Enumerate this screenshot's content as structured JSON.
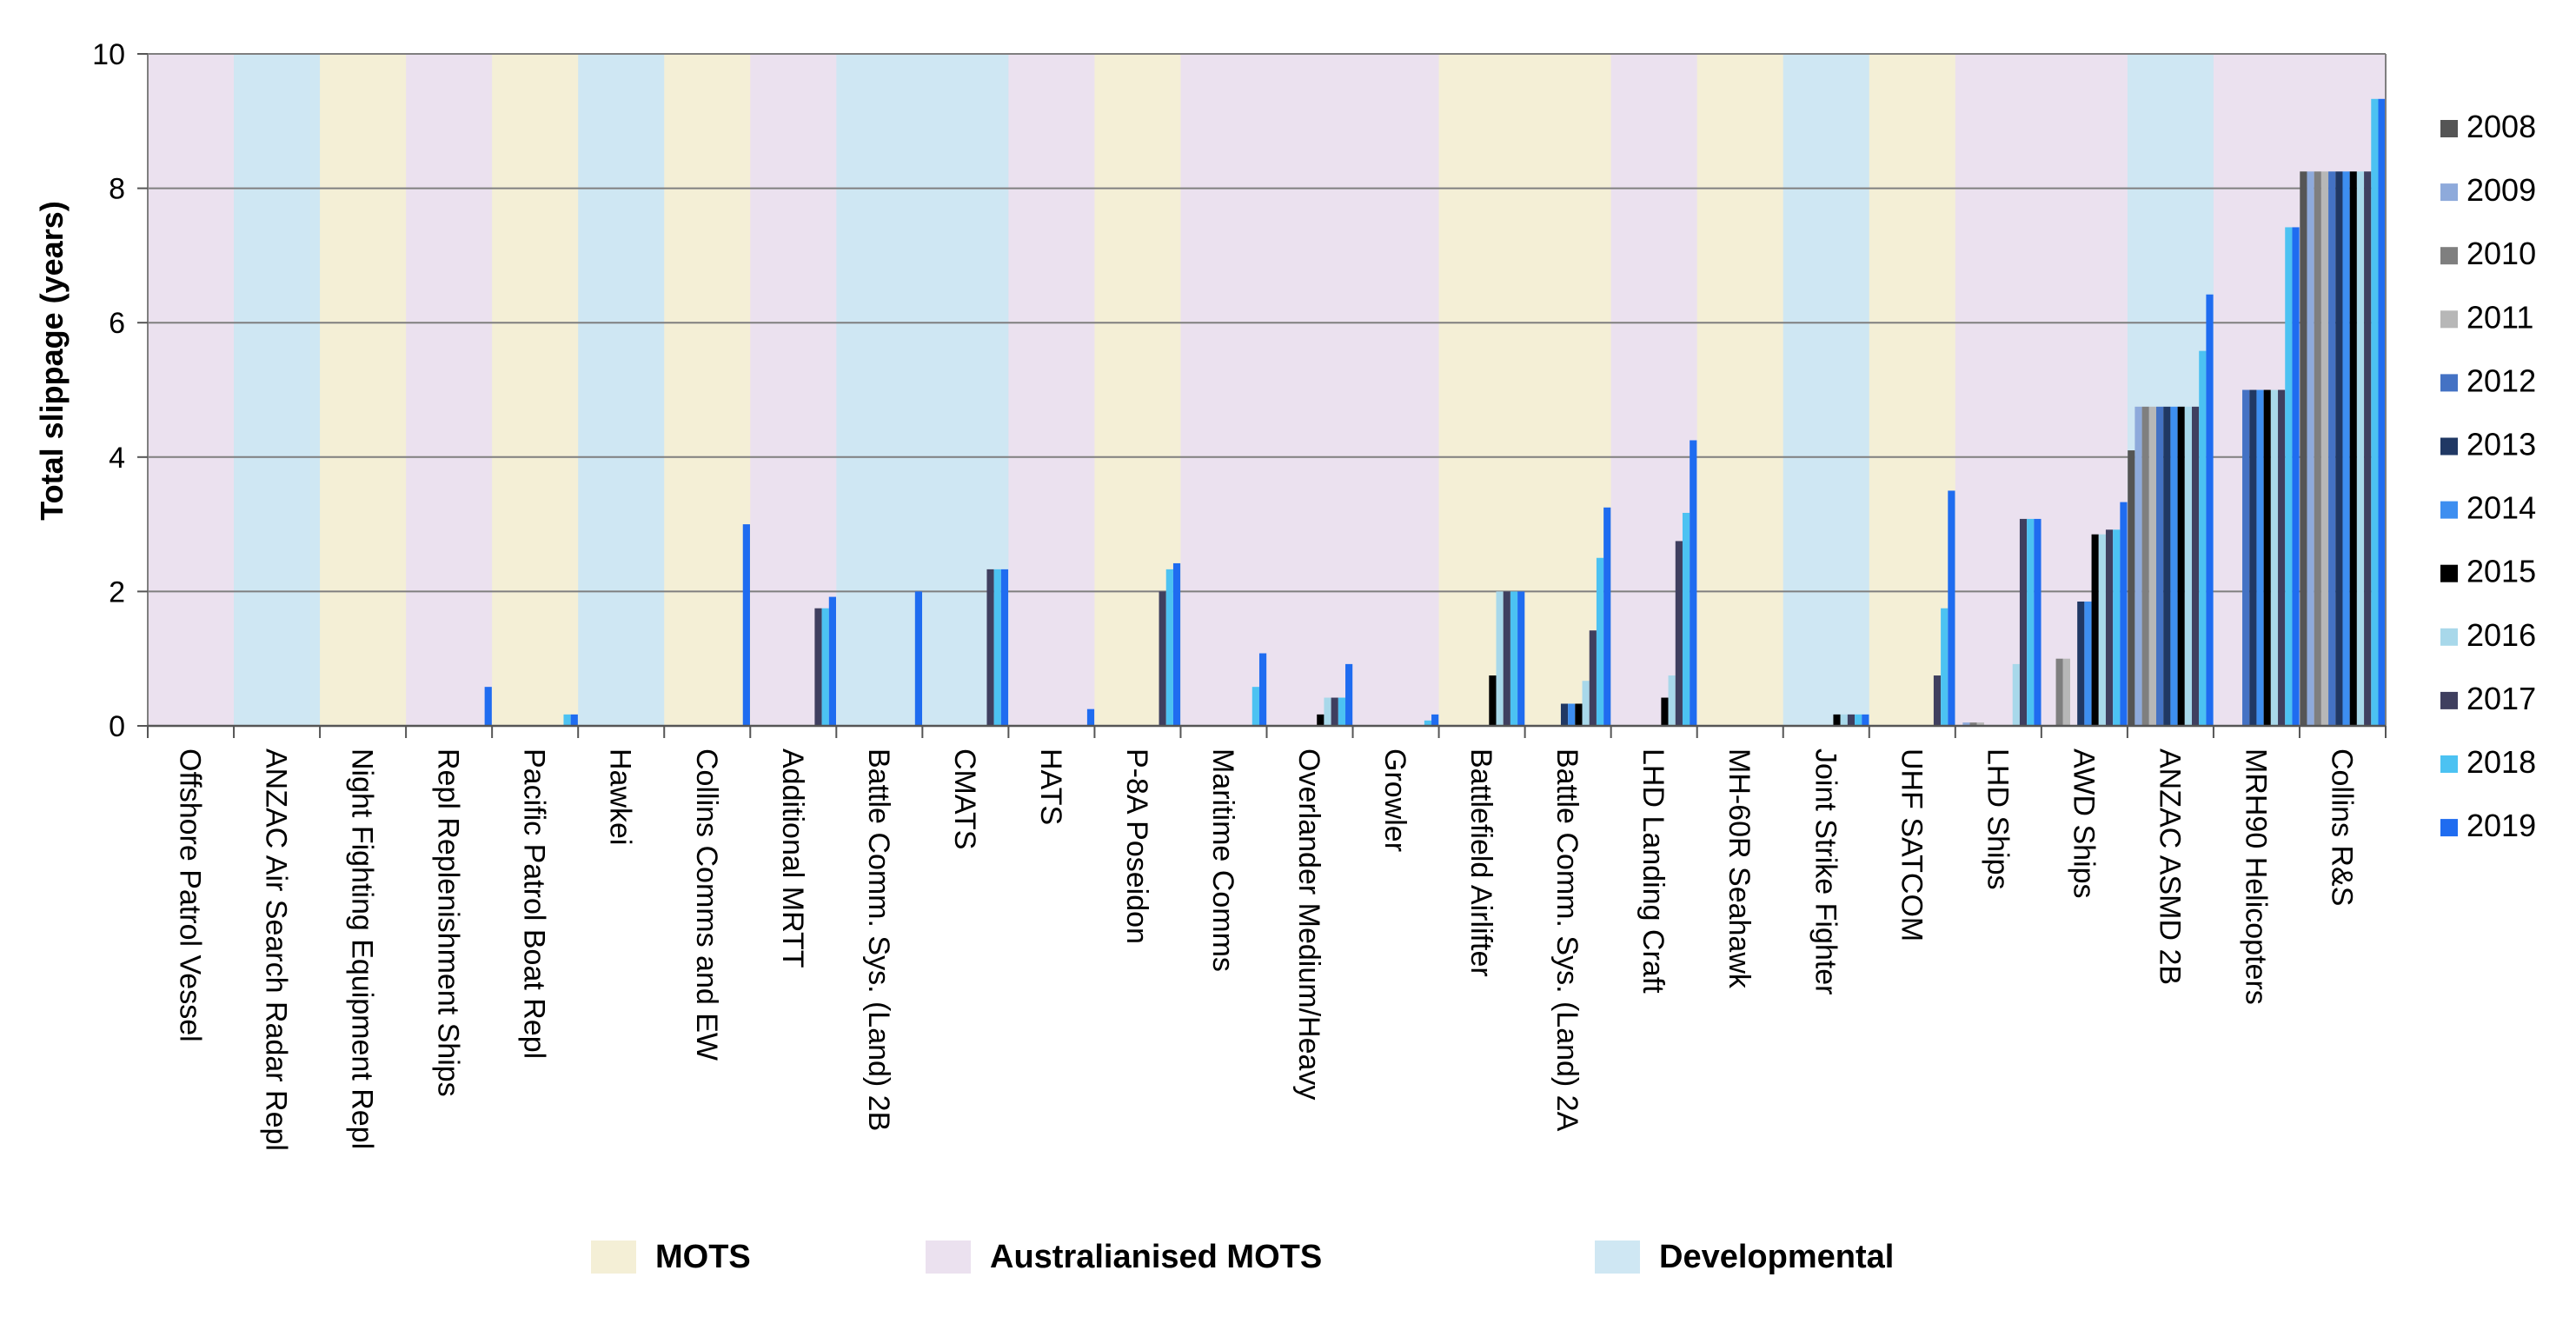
{
  "chart_data": {
    "type": "bar",
    "ylabel": "Total slippage (years)",
    "ylim": [
      0,
      10
    ],
    "yticks": [
      "0",
      "2",
      "4",
      "6",
      "8",
      "10"
    ],
    "grid": true,
    "legend_position": "right",
    "categories": [
      "Offshore Patrol Vessel",
      "ANZAC Air Search Radar Repl",
      "Night Fighting Equipment Repl",
      "Repl Replenishment Ships",
      "Pacific Patrol Boat Repl",
      "Hawkei",
      "Collins Comms and EW",
      "Additional MRTT",
      "Battle Comm. Sys. (Land) 2B",
      "CMATS",
      "HATS",
      "P-8A Poseidon",
      "Maritime Comms",
      "Overlander Medium/Heavy",
      "Growler",
      "Battlefield Airlifter",
      "Battle Comm. Sys. (Land) 2A",
      "LHD Landing Craft",
      "MH-60R Seahawk",
      "Joint Strike Fighter",
      "UHF SATCOM",
      "LHD Ships",
      "AWD Ships",
      "ANZAC ASMD 2B",
      "MRH90 Helicopters",
      "Collins R&S"
    ],
    "category_types": [
      "aus",
      "dev",
      "mots",
      "aus",
      "mots",
      "dev",
      "mots",
      "aus",
      "dev",
      "dev",
      "aus",
      "mots",
      "aus",
      "aus",
      "aus",
      "mots",
      "mots",
      "aus",
      "mots",
      "dev",
      "mots",
      "aus",
      "aus",
      "dev",
      "aus",
      "aus"
    ],
    "band_colors": {
      "mots": "#f4efd6",
      "aus": "#ebe1ef",
      "dev": "#cfe7f3"
    },
    "band_legend": [
      {
        "key": "mots",
        "label": "MOTS"
      },
      {
        "key": "aus",
        "label": "Australianised MOTS"
      },
      {
        "key": "dev",
        "label": "Developmental"
      }
    ],
    "series": [
      {
        "name": "2008",
        "color": "#555555",
        "values": [
          0,
          0,
          0,
          0,
          0,
          0,
          0,
          0,
          0,
          0,
          0,
          0,
          0,
          0,
          0,
          0,
          0,
          0,
          0,
          0,
          0,
          0,
          0,
          4.1,
          0,
          8.25
        ]
      },
      {
        "name": "2009",
        "color": "#8eaadb",
        "values": [
          0,
          0,
          0,
          0,
          0,
          0,
          0,
          0,
          0,
          0,
          0,
          0,
          0,
          0,
          0,
          0,
          0,
          0,
          0,
          0,
          0,
          0.05,
          0,
          4.75,
          0,
          8.25
        ]
      },
      {
        "name": "2010",
        "color": "#7f7f7f",
        "values": [
          0,
          0,
          0,
          0,
          0,
          0,
          0,
          0,
          0,
          0,
          0,
          0,
          0,
          0,
          0,
          0,
          0,
          0,
          0,
          0,
          0,
          0.05,
          1.0,
          4.75,
          0,
          8.25
        ]
      },
      {
        "name": "2011",
        "color": "#b7b7b7",
        "values": [
          0,
          0,
          0,
          0,
          0,
          0,
          0,
          0,
          0,
          0,
          0,
          0,
          0,
          0,
          0,
          0,
          0,
          0,
          0,
          0,
          0,
          0.05,
          1.0,
          4.75,
          0,
          8.25
        ]
      },
      {
        "name": "2012",
        "color": "#4472c4",
        "values": [
          0,
          0,
          0,
          0,
          0,
          0,
          0,
          0,
          0,
          0,
          0,
          0,
          0,
          0,
          0,
          0,
          0,
          0,
          0,
          0,
          0,
          0,
          0,
          4.75,
          5.0,
          8.25
        ]
      },
      {
        "name": "2013",
        "color": "#203864",
        "values": [
          0,
          0,
          0,
          0,
          0,
          0,
          0,
          0,
          0,
          0,
          0,
          0,
          0,
          0,
          0,
          0,
          0.33,
          0,
          0,
          0,
          0,
          0,
          1.85,
          4.75,
          5.0,
          8.25
        ]
      },
      {
        "name": "2014",
        "color": "#3d8ef0",
        "values": [
          0,
          0,
          0,
          0,
          0,
          0,
          0,
          0,
          0,
          0,
          0,
          0,
          0,
          0,
          0,
          0,
          0.33,
          0,
          0,
          0,
          0,
          0,
          1.85,
          4.75,
          5.0,
          8.25
        ]
      },
      {
        "name": "2015",
        "color": "#000000",
        "values": [
          0,
          0,
          0,
          0,
          0,
          0,
          0,
          0,
          0,
          0,
          0,
          0,
          0,
          0.17,
          0,
          0.75,
          0.33,
          0.42,
          0,
          0.17,
          0,
          0,
          2.85,
          4.75,
          5.0,
          8.25
        ]
      },
      {
        "name": "2016",
        "color": "#a8d8ea",
        "values": [
          0,
          0,
          0,
          0,
          0,
          0,
          0,
          0,
          0,
          0,
          0,
          0,
          0,
          0.42,
          0,
          2.0,
          0.67,
          0.75,
          0,
          0.17,
          0,
          0.92,
          2.85,
          4.75,
          5.0,
          8.25
        ]
      },
      {
        "name": "2017",
        "color": "#3f3f5f",
        "values": [
          0,
          0,
          0,
          0,
          0,
          0,
          0,
          1.75,
          0,
          2.33,
          0,
          2.0,
          0,
          0.42,
          0,
          2.0,
          1.42,
          2.75,
          0,
          0.17,
          0.75,
          3.08,
          2.92,
          4.75,
          5.0,
          8.25
        ]
      },
      {
        "name": "2018",
        "color": "#4cc2f2",
        "values": [
          0,
          0,
          0,
          0,
          0.17,
          0,
          0,
          1.75,
          0,
          2.33,
          0,
          2.33,
          0.58,
          0.42,
          0.08,
          2.0,
          2.5,
          3.17,
          0,
          0.17,
          1.75,
          3.08,
          2.92,
          5.58,
          7.42,
          9.33
        ]
      },
      {
        "name": "2019",
        "color": "#1f6cf0",
        "values": [
          0,
          0,
          0,
          0.58,
          0.17,
          0,
          3.0,
          1.92,
          2.0,
          2.33,
          0.25,
          2.42,
          1.08,
          0.92,
          0.17,
          2.0,
          3.25,
          4.25,
          0,
          0.17,
          3.5,
          3.08,
          3.33,
          6.42,
          7.42,
          9.33
        ]
      }
    ]
  }
}
